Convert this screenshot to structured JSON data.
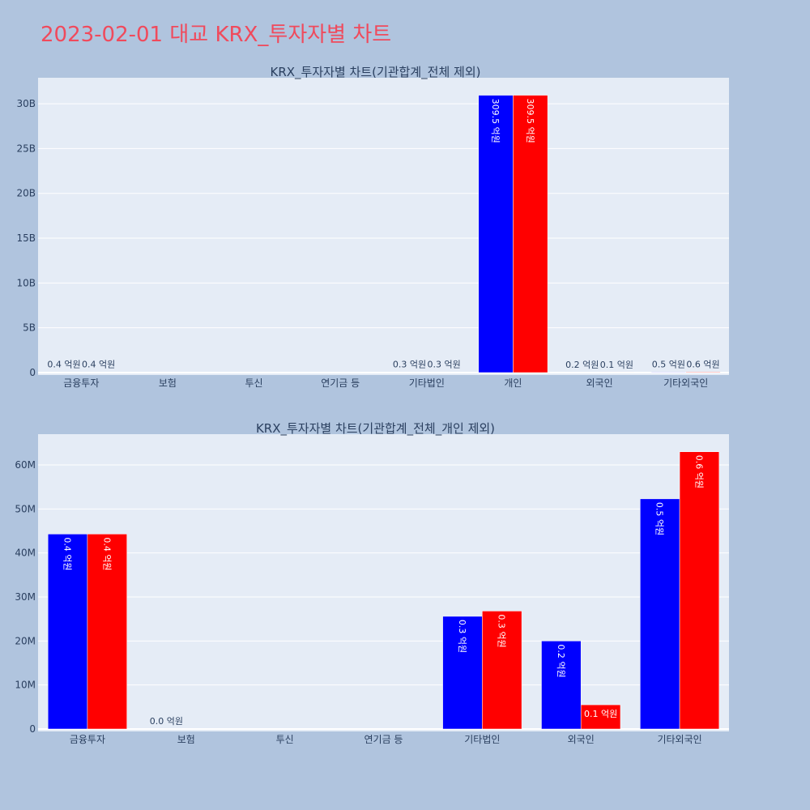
{
  "page_title": "2023-02-01 대교 KRX_투자자별 차트",
  "colors": {
    "series_a": "#0000ff",
    "series_b": "#ff0000",
    "plot_bg": "#e5ecf6",
    "page_bg": "#b0c4de",
    "title": "#f04a5c"
  },
  "chart_data": [
    {
      "type": "bar",
      "title": "KRX_투자자별 차트(기관합계_전체 제외)",
      "categories": [
        "금융투자",
        "보험",
        "투신",
        "연기금 등",
        "기타법인",
        "개인",
        "외국인",
        "기타외국인"
      ],
      "series": [
        {
          "values": [
            44300000,
            0,
            0,
            0,
            25600000,
            30950000000,
            20000000,
            52300000
          ],
          "labels": [
            "0.4 억원",
            "",
            "",
            "",
            "0.3 억원",
            "309.5 억원",
            "0.2 억원",
            "0.5 억원"
          ]
        },
        {
          "values": [
            44300000,
            0,
            0,
            0,
            26800000,
            30950000000,
            5500000,
            63000000
          ],
          "labels": [
            "0.4 억원",
            "",
            "",
            "",
            "0.3 억원",
            "309.5 억원",
            "0.1 억원",
            "0.6 억원"
          ]
        }
      ],
      "yticks": [
        "0",
        "5B",
        "10B",
        "15B",
        "20B",
        "25B",
        "30B"
      ],
      "ytick_values": [
        0,
        5000000000,
        10000000000,
        15000000000,
        20000000000,
        25000000000,
        30000000000
      ],
      "ylim": [
        0,
        32900000000
      ],
      "grid": true,
      "legend": "none"
    },
    {
      "type": "bar",
      "title": "KRX_투자자별 차트(기관합계_전체_개인 제외)",
      "categories": [
        "금융투자",
        "보험",
        "투신",
        "연기금 등",
        "기타법인",
        "외국인",
        "기타외국인"
      ],
      "series": [
        {
          "values": [
            44300000,
            0,
            0,
            0,
            25600000,
            20000000,
            52300000
          ],
          "labels": [
            "0.4 억원",
            "0.0 억원",
            "",
            "",
            "0.3 억원",
            "0.2 억원",
            "0.5 억원"
          ]
        },
        {
          "values": [
            44300000,
            0,
            0,
            0,
            26800000,
            5500000,
            63000000
          ],
          "labels": [
            "0.4 억원",
            "",
            "",
            "",
            "0.3 억원",
            "0.1 억원",
            "0.6 억원"
          ]
        }
      ],
      "yticks": [
        "0",
        "10M",
        "20M",
        "30M",
        "40M",
        "50M",
        "60M"
      ],
      "ytick_values": [
        0,
        10000000,
        20000000,
        30000000,
        40000000,
        50000000,
        60000000
      ],
      "ylim": [
        0,
        67000000
      ],
      "grid": true,
      "legend": "none"
    }
  ]
}
